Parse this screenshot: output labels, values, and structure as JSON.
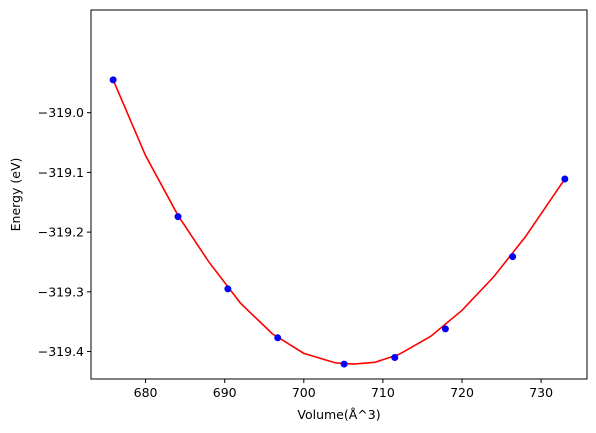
{
  "chart_data": {
    "type": "scatter",
    "title": "",
    "xlabel": "Volume(Å^3)",
    "ylabel": "Energy (eV)",
    "xlim": [
      673.1,
      735.8
    ],
    "ylim": [
      -319.446,
      -318.828
    ],
    "xticks": [
      680,
      690,
      700,
      710,
      720,
      730
    ],
    "yticks": [
      -319.4,
      -319.3,
      -319.2,
      -319.1,
      -319.0
    ],
    "xtick_labels": [
      "680",
      "690",
      "700",
      "710",
      "720",
      "730"
    ],
    "ytick_labels": [
      "−319.4",
      "−319.3",
      "−319.2",
      "−319.1",
      "−319.0"
    ],
    "grid": false,
    "legend": "none",
    "series": [
      {
        "type": "scatter",
        "color": "#0000ff",
        "x": [
          675.9,
          684.1,
          690.4,
          696.7,
          705.1,
          711.5,
          717.9,
          726.4,
          733.0
        ],
        "y": [
          -318.945,
          -319.174,
          -319.295,
          -319.377,
          -319.421,
          -319.41,
          -319.362,
          -319.241,
          -319.111
        ]
      },
      {
        "type": "line",
        "color": "#ff0000",
        "x": [
          675.9,
          680.0,
          684.1,
          688.0,
          692.0,
          696.0,
          700.0,
          704.0,
          706.3,
          709.0,
          712.0,
          716.0,
          720.0,
          724.0,
          728.0,
          733.0
        ],
        "y": [
          -318.945,
          -319.072,
          -319.172,
          -319.25,
          -319.319,
          -319.37,
          -319.403,
          -319.419,
          -319.421,
          -319.418,
          -319.405,
          -319.375,
          -319.331,
          -319.275,
          -319.208,
          -319.111
        ]
      }
    ]
  }
}
